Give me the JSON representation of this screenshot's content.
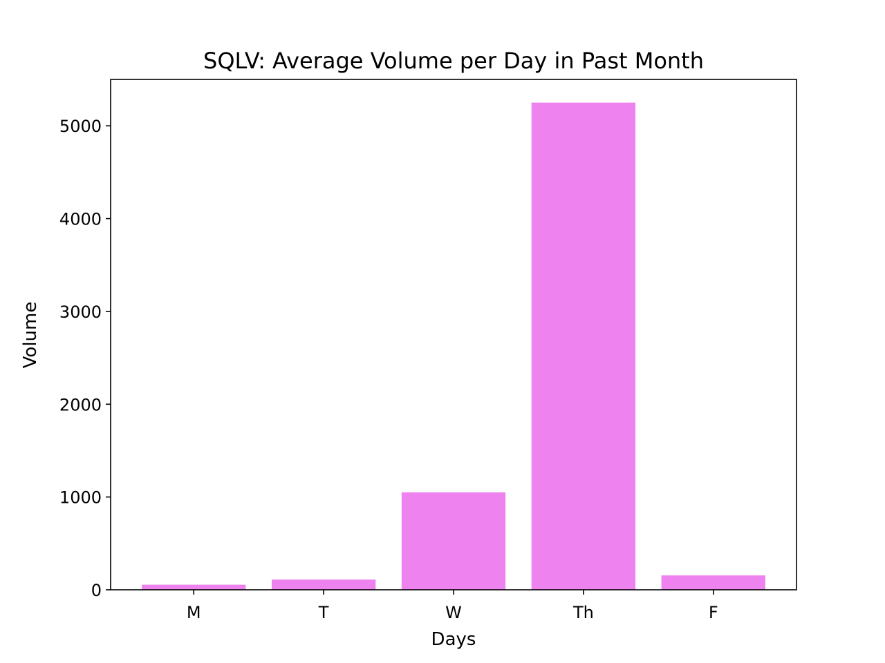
{
  "chart_data": {
    "type": "bar",
    "title": "SQLV: Average Volume per Day in Past Month",
    "xlabel": "Days",
    "ylabel": "Volume",
    "categories": [
      "M",
      "T",
      "W",
      "Th",
      "F"
    ],
    "values": [
      55,
      110,
      1050,
      5250,
      155
    ],
    "ylim": [
      0,
      5500
    ],
    "yticks": [
      0,
      1000,
      2000,
      3000,
      4000,
      5000
    ],
    "bar_color": "#ee82ee",
    "grid": false,
    "legend": "none"
  }
}
